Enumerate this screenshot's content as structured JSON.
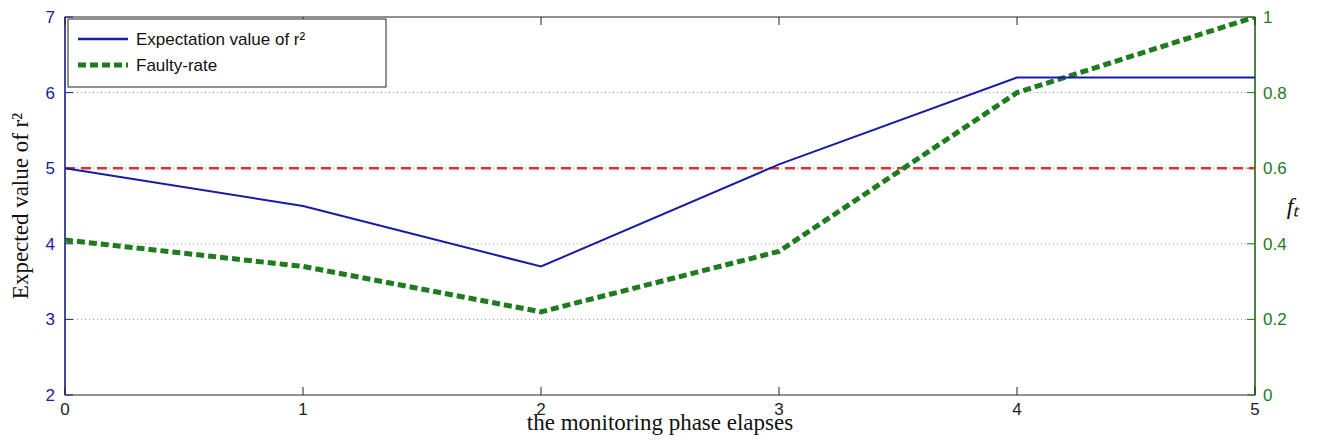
{
  "chart_data": {
    "type": "line",
    "xlabel": "the monitoring phase elapses",
    "ylabel": "Expected value of r²",
    "y2label": "fₜ",
    "x": [
      0,
      1,
      2,
      3,
      4,
      5
    ],
    "xlim": [
      0,
      5
    ],
    "xticks": [
      0,
      1,
      2,
      3,
      4,
      5
    ],
    "ylim": [
      2,
      7
    ],
    "yticks": [
      2,
      3,
      4,
      5,
      6,
      7
    ],
    "y2lim": [
      0,
      1
    ],
    "y2ticks": [
      0,
      0.2,
      0.4,
      0.6,
      0.8,
      1
    ],
    "grid": true,
    "legend": "upper left",
    "series": [
      {
        "name": "Expectation value of r²",
        "color": "#1a1aa6",
        "line_style": "solid",
        "values": [
          5,
          4.5,
          3.7,
          5.05,
          6.2,
          6.2
        ]
      },
      {
        "name": "Faulty-rate",
        "color": "#1e7b1e",
        "line_style": "dashed",
        "axis": "y2",
        "values": [
          0.41,
          0.34,
          0.22,
          0.38,
          0.8,
          1.0
        ]
      },
      {
        "color": "#e8312a",
        "line_style": "dashed",
        "values": [
          5,
          5,
          5,
          5,
          5,
          5
        ]
      }
    ]
  }
}
